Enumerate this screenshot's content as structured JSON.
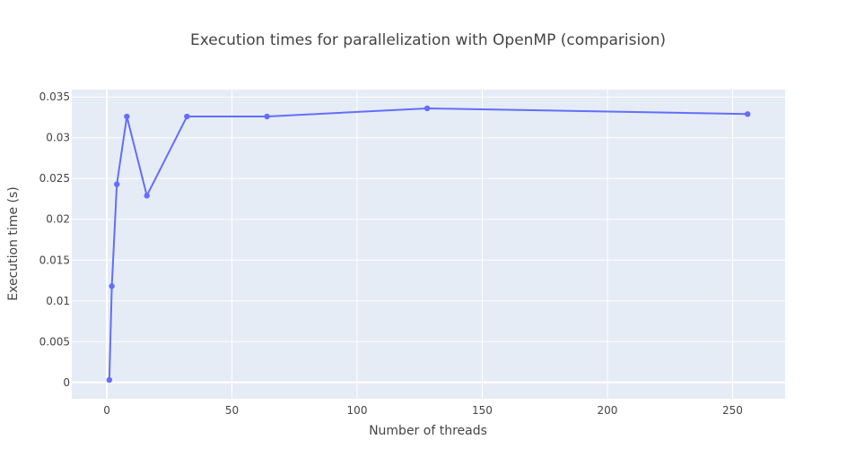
{
  "chart_data": {
    "type": "line",
    "title": "Execution times for parallelization with OpenMP (comparision)",
    "xlabel": "Number of threads",
    "ylabel": "Execution time (s)",
    "x": [
      1,
      2,
      4,
      8,
      16,
      32,
      64,
      128,
      256
    ],
    "series": [
      {
        "name": "",
        "values": [
          0.0003,
          0.0118,
          0.0243,
          0.0326,
          0.0229,
          0.0326,
          0.0326,
          0.0336,
          0.0329
        ]
      }
    ],
    "xlim": [
      -14,
      271
    ],
    "ylim": [
      -0.002,
      0.0359
    ],
    "xticks": [
      0,
      50,
      100,
      150,
      200,
      250
    ],
    "xtick_labels": [
      "0",
      "50",
      "100",
      "150",
      "200",
      "250"
    ],
    "yticks": [
      0,
      0.005,
      0.01,
      0.015,
      0.02,
      0.025,
      0.03,
      0.035
    ],
    "ytick_labels": [
      "0",
      "0.005",
      "0.01",
      "0.015",
      "0.02",
      "0.025",
      "0.03",
      "0.035"
    ],
    "grid": true,
    "legend": "none",
    "colors": {
      "plot_background": "#e5ecf6",
      "grid": "#ffffff",
      "line": "#636efa",
      "text": "#444444"
    }
  }
}
